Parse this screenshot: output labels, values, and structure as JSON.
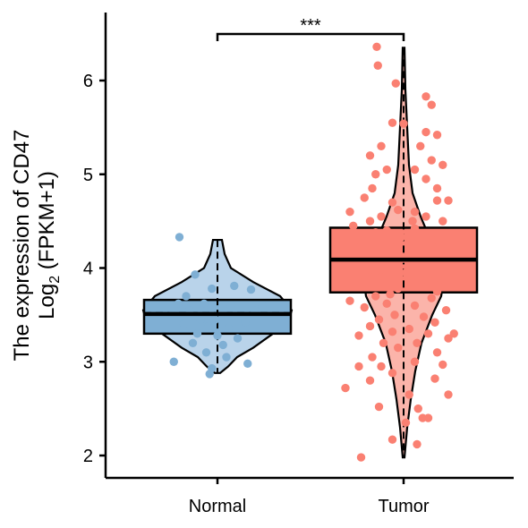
{
  "chart_data": {
    "type": "violin-box-jitter",
    "categories": [
      "Normal",
      "Tumor"
    ],
    "ylabel_line1": "The expression of CD47",
    "ylabel_line2_main": "Log",
    "ylabel_line2_sub": "2",
    "ylabel_line2_rest": " (FPKM+1)",
    "yticks": [
      2,
      3,
      4,
      5,
      6
    ],
    "ylim": [
      1.75,
      6.75
    ],
    "significance": "***",
    "grid": false,
    "colors": {
      "Normal": "#7fafd4",
      "Normal_violin": "#b9d3ea",
      "Tumor": "#fa8072",
      "Tumor_violin": "#fbb4aa"
    },
    "series": [
      {
        "name": "Normal",
        "box": {
          "q1": 3.3,
          "median": 3.51,
          "q3": 3.66,
          "mean": 3.52,
          "whisker_low": 2.88,
          "whisker_high": 4.3
        },
        "points": [
          [
            -0.34,
            4.33
          ],
          [
            -0.2,
            3.93
          ],
          [
            -0.05,
            3.78
          ],
          [
            -0.28,
            3.7
          ],
          [
            -0.12,
            3.62
          ],
          [
            0.15,
            3.81
          ],
          [
            0.3,
            3.77
          ],
          [
            -0.25,
            3.55
          ],
          [
            -0.4,
            3.5
          ],
          [
            -0.15,
            3.45
          ],
          [
            0.05,
            3.52
          ],
          [
            0.2,
            3.48
          ],
          [
            0.33,
            3.55
          ],
          [
            -0.3,
            3.4
          ],
          [
            -0.08,
            3.38
          ],
          [
            0.1,
            3.36
          ],
          [
            0.25,
            3.42
          ],
          [
            -0.18,
            3.3
          ],
          [
            0.0,
            3.28
          ],
          [
            0.18,
            3.25
          ],
          [
            -0.35,
            3.62
          ],
          [
            0.4,
            3.6
          ],
          [
            -0.22,
            3.2
          ],
          [
            0.05,
            3.18
          ],
          [
            -0.1,
            3.1
          ],
          [
            0.08,
            3.05
          ],
          [
            -0.39,
            3.0
          ],
          [
            0.27,
            2.98
          ],
          [
            -0.05,
            2.93
          ],
          [
            -0.07,
            2.87
          ],
          [
            0.12,
            3.6
          ],
          [
            -0.02,
            3.45
          ]
        ]
      },
      {
        "name": "Tumor",
        "box": {
          "q1": 3.74,
          "median": 4.09,
          "q3": 4.43,
          "mean": 4.1,
          "whisker_low": 1.98,
          "whisker_high": 6.35
        },
        "points": [
          [
            -0.24,
            6.36
          ],
          [
            -0.23,
            6.16
          ],
          [
            -0.07,
            5.97
          ],
          [
            0.2,
            5.83
          ],
          [
            0.25,
            5.74
          ],
          [
            -0.1,
            5.55
          ],
          [
            0.0,
            5.54
          ],
          [
            0.2,
            5.45
          ],
          [
            0.3,
            5.42
          ],
          [
            -0.2,
            5.3
          ],
          [
            0.15,
            5.3
          ],
          [
            -0.3,
            5.2
          ],
          [
            0.25,
            5.15
          ],
          [
            0.35,
            5.1
          ],
          [
            0.1,
            5.05
          ],
          [
            -0.25,
            5.0
          ],
          [
            -0.15,
            5.05
          ],
          [
            0.2,
            4.95
          ],
          [
            0.3,
            4.85
          ],
          [
            -0.28,
            4.85
          ],
          [
            -0.35,
            4.75
          ],
          [
            0.3,
            4.72
          ],
          [
            -0.1,
            4.7
          ],
          [
            0.4,
            4.72
          ],
          [
            -0.05,
            4.62
          ],
          [
            0.1,
            4.6
          ],
          [
            0.2,
            4.55
          ],
          [
            -0.2,
            4.55
          ],
          [
            -0.3,
            4.5
          ],
          [
            0.35,
            4.5
          ],
          [
            -0.45,
            4.45
          ],
          [
            0.1,
            4.42
          ],
          [
            -0.25,
            4.38
          ],
          [
            0.2,
            4.35
          ],
          [
            -0.4,
            4.3
          ],
          [
            0.3,
            4.3
          ],
          [
            0.05,
            4.28
          ],
          [
            -0.15,
            4.25
          ],
          [
            0.25,
            4.2
          ],
          [
            -0.35,
            4.15
          ],
          [
            0.4,
            4.15
          ],
          [
            0.0,
            4.1
          ],
          [
            -0.1,
            4.05
          ],
          [
            0.15,
            4.0
          ],
          [
            -0.3,
            3.98
          ],
          [
            0.35,
            3.95
          ],
          [
            -0.2,
            3.9
          ],
          [
            0.2,
            3.88
          ],
          [
            -0.4,
            3.85
          ],
          [
            0.05,
            3.82
          ],
          [
            -0.05,
            3.78
          ],
          [
            0.3,
            3.75
          ],
          [
            -0.25,
            3.7
          ],
          [
            0.25,
            3.68
          ],
          [
            -0.15,
            3.62
          ],
          [
            0.1,
            3.6
          ],
          [
            -0.35,
            3.58
          ],
          [
            0.38,
            3.55
          ],
          [
            -0.08,
            3.5
          ],
          [
            0.18,
            3.48
          ],
          [
            -0.22,
            3.45
          ],
          [
            0.28,
            3.42
          ],
          [
            -0.3,
            3.38
          ],
          [
            0.05,
            3.35
          ],
          [
            -0.1,
            3.32
          ],
          [
            0.22,
            3.3
          ],
          [
            -0.4,
            3.28
          ],
          [
            0.4,
            3.25
          ],
          [
            -0.18,
            3.2
          ],
          [
            0.12,
            3.2
          ],
          [
            -0.05,
            3.15
          ],
          [
            0.3,
            3.1
          ],
          [
            -0.28,
            3.05
          ],
          [
            -0.4,
            2.95
          ],
          [
            -0.2,
            2.95
          ],
          [
            0.1,
            3.0
          ],
          [
            0.35,
            2.97
          ],
          [
            -0.1,
            2.88
          ],
          [
            0.28,
            2.82
          ],
          [
            -0.3,
            2.8
          ],
          [
            0.4,
            2.65
          ],
          [
            -0.52,
            2.72
          ],
          [
            0.05,
            2.65
          ],
          [
            0.13,
            2.5
          ],
          [
            -0.22,
            2.52
          ],
          [
            0.02,
            2.35
          ],
          [
            0.17,
            2.4
          ],
          [
            0.22,
            2.4
          ],
          [
            -0.1,
            2.17
          ],
          [
            0.12,
            2.12
          ],
          [
            -0.38,
            1.98
          ],
          [
            -0.15,
            4.4
          ],
          [
            0.08,
            4.5
          ],
          [
            -0.02,
            4.33
          ],
          [
            0.17,
            4.12
          ],
          [
            -0.28,
            4.02
          ],
          [
            0.33,
            3.88
          ],
          [
            -0.12,
            3.72
          ],
          [
            0.22,
            3.92
          ],
          [
            0.45,
            4.35
          ],
          [
            -0.48,
            4.6
          ],
          [
            0.45,
            3.3
          ],
          [
            -0.48,
            3.65
          ],
          [
            0.02,
            3.95
          ],
          [
            -0.07,
            4.22
          ]
        ]
      }
    ]
  }
}
